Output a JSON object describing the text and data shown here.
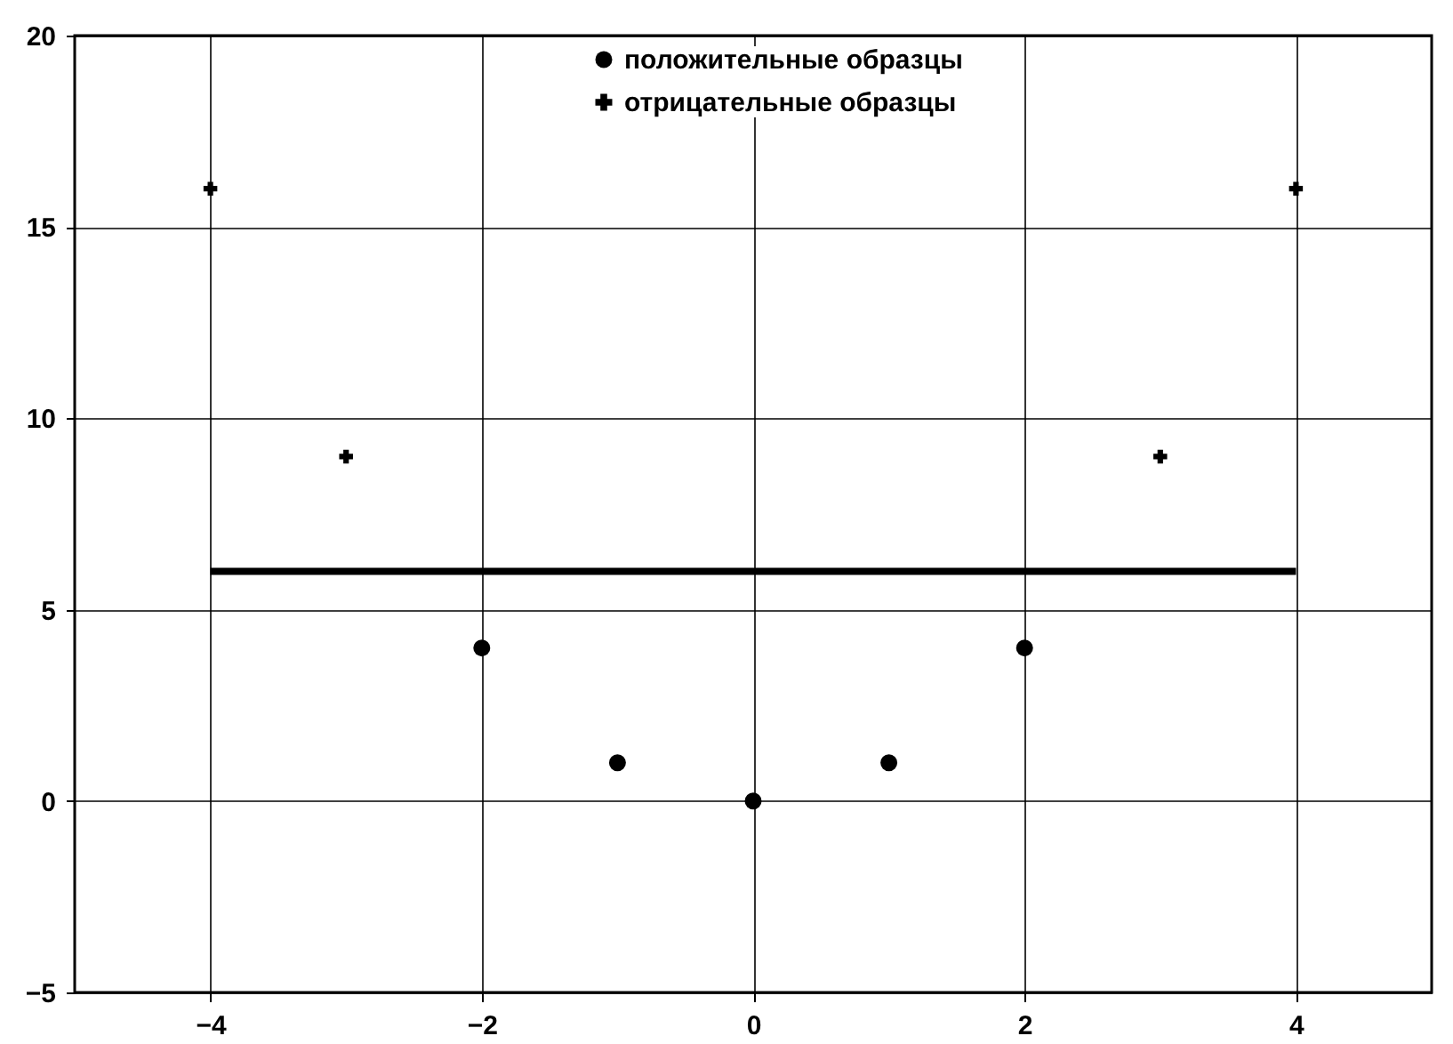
{
  "chart_data": {
    "type": "scatter",
    "series": [
      {
        "name": "положительные образцы",
        "color": "#000000",
        "marker": "circle",
        "x": [
          -2,
          -1,
          0,
          1,
          2
        ],
        "values": [
          4,
          1,
          0,
          1,
          4
        ]
      },
      {
        "name": "отрицательные образцы",
        "color": "#000000",
        "marker": "cross",
        "x": [
          -4,
          -3,
          3,
          4
        ],
        "values": [
          16,
          9,
          9,
          16
        ]
      },
      {
        "type": "line",
        "color": "#000000",
        "x": [
          -4,
          4
        ],
        "values": [
          6,
          6
        ]
      }
    ],
    "xlim": [
      -5,
      5
    ],
    "xticks": [
      -4,
      -2,
      0,
      2,
      4
    ],
    "ylim": [
      -5,
      20
    ],
    "yticks": [
      -5,
      0,
      5,
      10,
      15,
      20
    ],
    "grid": true,
    "legend": "top"
  }
}
